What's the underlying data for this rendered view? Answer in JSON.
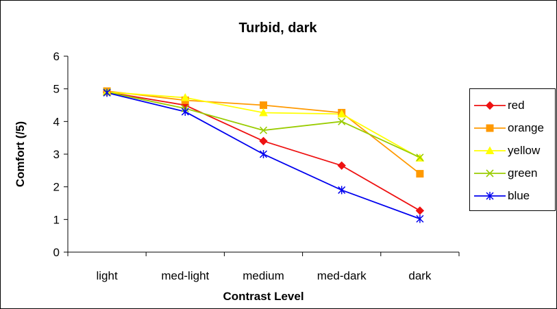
{
  "chart_data": {
    "type": "line",
    "title": "Turbid, dark",
    "xlabel": "Contrast Level",
    "ylabel": "Comfort (/5)",
    "categories": [
      "light",
      "med-light",
      "medium",
      "med-dark",
      "dark"
    ],
    "ylim": [
      0,
      6
    ],
    "yticks": [
      "0",
      "1",
      "2",
      "3",
      "4",
      "5",
      "6"
    ],
    "legend_position": "right",
    "grid": false,
    "series": [
      {
        "name": "red",
        "color": "#ee1111",
        "marker": "diamond",
        "values": [
          4.9,
          4.5,
          3.4,
          2.65,
          1.27
        ]
      },
      {
        "name": "orange",
        "color": "#ff9900",
        "marker": "square",
        "values": [
          4.93,
          4.65,
          4.5,
          4.27,
          2.4
        ]
      },
      {
        "name": "yellow",
        "color": "#ffff00",
        "marker": "triangle",
        "values": [
          4.9,
          4.73,
          4.27,
          4.23,
          2.88
        ]
      },
      {
        "name": "green",
        "color": "#99cc00",
        "marker": "x",
        "values": [
          4.9,
          4.4,
          3.73,
          4.0,
          2.9
        ]
      },
      {
        "name": "blue",
        "color": "#0000ee",
        "marker": "star",
        "values": [
          4.88,
          4.3,
          3.0,
          1.9,
          1.02
        ]
      }
    ]
  }
}
